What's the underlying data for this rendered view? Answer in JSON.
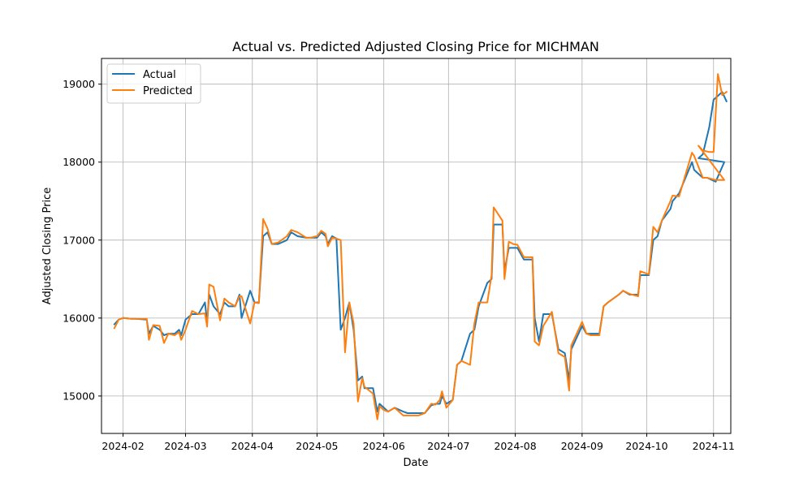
{
  "chart_data": {
    "type": "line",
    "title": "Actual vs. Predicted Adjusted Closing Price for MICHMAN",
    "xlabel": "Date",
    "ylabel": "Adjusted Closing Price",
    "x_tick_labels": [
      "2024-02",
      "2024-03",
      "2024-04",
      "2024-05",
      "2024-06",
      "2024-07",
      "2024-08",
      "2024-09",
      "2024-10",
      "2024-11"
    ],
    "y_tick_labels": [
      "15000",
      "16000",
      "17000",
      "18000",
      "19000"
    ],
    "x_ticks": [
      "2024-02-01",
      "2024-03-01",
      "2024-04-01",
      "2024-05-01",
      "2024-06-01",
      "2024-07-01",
      "2024-08-01",
      "2024-09-01",
      "2024-10-01",
      "2024-11-01"
    ],
    "y_ticks": [
      15000,
      16000,
      17000,
      18000,
      19000
    ],
    "xlim": [
      "2024-01-22",
      "2024-11-09"
    ],
    "ylim": [
      14520,
      19330
    ],
    "grid": true,
    "legend_position": "upper-left",
    "series": [
      {
        "name": "Actual",
        "color": "#1f77b4",
        "points": [
          [
            "2024-01-28",
            15920
          ],
          [
            "2024-01-30",
            15980
          ],
          [
            "2024-02-01",
            16000
          ],
          [
            "2024-02-05",
            15990
          ],
          [
            "2024-02-07",
            15990
          ],
          [
            "2024-02-12",
            15980
          ],
          [
            "2024-02-13",
            15800
          ],
          [
            "2024-02-15",
            15900
          ],
          [
            "2024-02-18",
            15850
          ],
          [
            "2024-02-20",
            15780
          ],
          [
            "2024-02-22",
            15800
          ],
          [
            "2024-02-25",
            15800
          ],
          [
            "2024-02-27",
            15850
          ],
          [
            "2024-02-28",
            15780
          ],
          [
            "2024-03-01",
            15980
          ],
          [
            "2024-03-04",
            16050
          ],
          [
            "2024-03-07",
            16050
          ],
          [
            "2024-03-10",
            16200
          ],
          [
            "2024-03-11",
            15950
          ],
          [
            "2024-03-12",
            16300
          ],
          [
            "2024-03-14",
            16150
          ],
          [
            "2024-03-17",
            16050
          ],
          [
            "2024-03-19",
            16200
          ],
          [
            "2024-03-21",
            16150
          ],
          [
            "2024-03-24",
            16150
          ],
          [
            "2024-03-26",
            16300
          ],
          [
            "2024-03-27",
            16000
          ],
          [
            "2024-03-31",
            16350
          ],
          [
            "2024-04-02",
            16200
          ],
          [
            "2024-04-04",
            16200
          ],
          [
            "2024-04-06",
            17050
          ],
          [
            "2024-04-08",
            17100
          ],
          [
            "2024-04-10",
            16950
          ],
          [
            "2024-04-13",
            16950
          ],
          [
            "2024-04-17",
            17000
          ],
          [
            "2024-04-19",
            17100
          ],
          [
            "2024-04-22",
            17050
          ],
          [
            "2024-04-26",
            17030
          ],
          [
            "2024-04-28",
            17030
          ],
          [
            "2024-05-01",
            17030
          ],
          [
            "2024-05-03",
            17100
          ],
          [
            "2024-05-05",
            17050
          ],
          [
            "2024-05-06",
            16950
          ],
          [
            "2024-05-08",
            17050
          ],
          [
            "2024-05-10",
            17020
          ],
          [
            "2024-05-12",
            15850
          ],
          [
            "2024-05-14",
            16000
          ],
          [
            "2024-05-16",
            16200
          ],
          [
            "2024-05-18",
            15850
          ],
          [
            "2024-05-20",
            15200
          ],
          [
            "2024-05-22",
            15250
          ],
          [
            "2024-05-23",
            15100
          ],
          [
            "2024-05-27",
            15100
          ],
          [
            "2024-05-29",
            14800
          ],
          [
            "2024-05-30",
            14900
          ],
          [
            "2024-06-01",
            14850
          ],
          [
            "2024-06-03",
            14800
          ],
          [
            "2024-06-06",
            14850
          ],
          [
            "2024-06-10",
            14800
          ],
          [
            "2024-06-12",
            14780
          ],
          [
            "2024-06-17",
            14780
          ],
          [
            "2024-06-20",
            14780
          ],
          [
            "2024-06-23",
            14880
          ],
          [
            "2024-06-25",
            14900
          ],
          [
            "2024-06-27",
            14900
          ],
          [
            "2024-06-28",
            15000
          ],
          [
            "2024-06-30",
            14900
          ],
          [
            "2024-07-03",
            14950
          ],
          [
            "2024-07-05",
            15400
          ],
          [
            "2024-07-07",
            15450
          ],
          [
            "2024-07-11",
            15800
          ],
          [
            "2024-07-13",
            15850
          ],
          [
            "2024-07-15",
            16150
          ],
          [
            "2024-07-19",
            16450
          ],
          [
            "2024-07-21",
            16500
          ],
          [
            "2024-07-22",
            17200
          ],
          [
            "2024-07-26",
            17200
          ],
          [
            "2024-07-27",
            16600
          ],
          [
            "2024-07-29",
            16900
          ],
          [
            "2024-07-31",
            16900
          ],
          [
            "2024-08-02",
            16900
          ],
          [
            "2024-08-05",
            16750
          ],
          [
            "2024-08-09",
            16750
          ],
          [
            "2024-08-10",
            16000
          ],
          [
            "2024-08-12",
            15700
          ],
          [
            "2024-08-14",
            16050
          ],
          [
            "2024-08-18",
            16050
          ],
          [
            "2024-08-21",
            15600
          ],
          [
            "2024-08-24",
            15550
          ],
          [
            "2024-08-26",
            15200
          ],
          [
            "2024-08-27",
            15600
          ],
          [
            "2024-09-01",
            15900
          ],
          [
            "2024-09-03",
            15800
          ],
          [
            "2024-09-05",
            15800
          ],
          [
            "2024-09-09",
            15800
          ],
          [
            "2024-09-11",
            16150
          ],
          [
            "2024-09-13",
            16200
          ],
          [
            "2024-09-18",
            16300
          ],
          [
            "2024-09-20",
            16350
          ],
          [
            "2024-09-23",
            16300
          ],
          [
            "2024-09-27",
            16300
          ],
          [
            "2024-09-28",
            16550
          ],
          [
            "2024-10-02",
            16550
          ],
          [
            "2024-10-04",
            17000
          ],
          [
            "2024-10-06",
            17050
          ],
          [
            "2024-10-08",
            17250
          ],
          [
            "2024-10-12",
            17400
          ],
          [
            "2024-10-13",
            17500
          ],
          [
            "2024-10-16",
            17600
          ],
          [
            "2024-10-22",
            18000
          ],
          [
            "2024-10-23",
            17900
          ],
          [
            "2024-10-27",
            17800
          ],
          [
            "2024-10-29",
            17800
          ],
          [
            "2024-11-02",
            17750
          ],
          [
            "2024-11-06",
            18000
          ],
          [
            "2024-10-25",
            18050
          ],
          [
            "2024-10-27",
            18100
          ],
          [
            "2024-10-30",
            18450
          ],
          [
            "2024-11-01",
            18800
          ],
          [
            "2024-11-03",
            18850
          ],
          [
            "2024-11-05",
            18900
          ],
          [
            "2024-11-07",
            18780
          ]
        ]
      },
      {
        "name": "Predicted",
        "color": "#ff7f0e",
        "points": [
          [
            "2024-01-28",
            15870
          ],
          [
            "2024-01-30",
            15980
          ],
          [
            "2024-02-01",
            16000
          ],
          [
            "2024-02-05",
            15990
          ],
          [
            "2024-02-07",
            15990
          ],
          [
            "2024-02-12",
            15990
          ],
          [
            "2024-02-13",
            15720
          ],
          [
            "2024-02-15",
            15910
          ],
          [
            "2024-02-18",
            15900
          ],
          [
            "2024-02-20",
            15680
          ],
          [
            "2024-02-22",
            15800
          ],
          [
            "2024-02-25",
            15780
          ],
          [
            "2024-02-27",
            15820
          ],
          [
            "2024-02-28",
            15720
          ],
          [
            "2024-03-01",
            15850
          ],
          [
            "2024-03-04",
            16090
          ],
          [
            "2024-03-07",
            16050
          ],
          [
            "2024-03-10",
            16060
          ],
          [
            "2024-03-11",
            15890
          ],
          [
            "2024-03-12",
            16430
          ],
          [
            "2024-03-14",
            16400
          ],
          [
            "2024-03-17",
            15970
          ],
          [
            "2024-03-19",
            16250
          ],
          [
            "2024-03-21",
            16200
          ],
          [
            "2024-03-24",
            16150
          ],
          [
            "2024-03-26",
            16280
          ],
          [
            "2024-03-27",
            16280
          ],
          [
            "2024-03-31",
            15930
          ],
          [
            "2024-04-02",
            16200
          ],
          [
            "2024-04-04",
            16190
          ],
          [
            "2024-04-06",
            17270
          ],
          [
            "2024-04-08",
            17150
          ],
          [
            "2024-04-10",
            16950
          ],
          [
            "2024-04-13",
            16970
          ],
          [
            "2024-04-17",
            17050
          ],
          [
            "2024-04-19",
            17130
          ],
          [
            "2024-04-22",
            17100
          ],
          [
            "2024-04-26",
            17030
          ],
          [
            "2024-04-28",
            17030
          ],
          [
            "2024-05-01",
            17050
          ],
          [
            "2024-05-03",
            17120
          ],
          [
            "2024-05-05",
            17080
          ],
          [
            "2024-05-06",
            16920
          ],
          [
            "2024-05-08",
            17030
          ],
          [
            "2024-05-10",
            17020
          ],
          [
            "2024-05-12",
            17000
          ],
          [
            "2024-05-14",
            15560
          ],
          [
            "2024-05-16",
            16200
          ],
          [
            "2024-05-18",
            15930
          ],
          [
            "2024-05-20",
            14930
          ],
          [
            "2024-05-22",
            15230
          ],
          [
            "2024-05-23",
            15120
          ],
          [
            "2024-05-27",
            15030
          ],
          [
            "2024-05-29",
            14700
          ],
          [
            "2024-05-30",
            14870
          ],
          [
            "2024-06-01",
            14820
          ],
          [
            "2024-06-03",
            14800
          ],
          [
            "2024-06-06",
            14850
          ],
          [
            "2024-06-10",
            14750
          ],
          [
            "2024-06-12",
            14750
          ],
          [
            "2024-06-17",
            14750
          ],
          [
            "2024-06-20",
            14780
          ],
          [
            "2024-06-23",
            14900
          ],
          [
            "2024-06-25",
            14890
          ],
          [
            "2024-06-27",
            14950
          ],
          [
            "2024-06-28",
            15060
          ],
          [
            "2024-06-30",
            14850
          ],
          [
            "2024-07-03",
            14950
          ],
          [
            "2024-07-05",
            15400
          ],
          [
            "2024-07-07",
            15450
          ],
          [
            "2024-07-11",
            15400
          ],
          [
            "2024-07-13",
            15930
          ],
          [
            "2024-07-15",
            16200
          ],
          [
            "2024-07-19",
            16200
          ],
          [
            "2024-07-21",
            16550
          ],
          [
            "2024-07-22",
            17420
          ],
          [
            "2024-07-26",
            17250
          ],
          [
            "2024-07-27",
            16500
          ],
          [
            "2024-07-29",
            16980
          ],
          [
            "2024-07-31",
            16950
          ],
          [
            "2024-08-02",
            16940
          ],
          [
            "2024-08-05",
            16780
          ],
          [
            "2024-08-09",
            16780
          ],
          [
            "2024-08-10",
            15700
          ],
          [
            "2024-08-12",
            15650
          ],
          [
            "2024-08-14",
            15900
          ],
          [
            "2024-08-18",
            16080
          ],
          [
            "2024-08-21",
            15550
          ],
          [
            "2024-08-24",
            15500
          ],
          [
            "2024-08-26",
            15070
          ],
          [
            "2024-08-27",
            15650
          ],
          [
            "2024-09-01",
            15950
          ],
          [
            "2024-09-03",
            15800
          ],
          [
            "2024-09-05",
            15780
          ],
          [
            "2024-09-09",
            15780
          ],
          [
            "2024-09-11",
            16150
          ],
          [
            "2024-09-13",
            16200
          ],
          [
            "2024-09-18",
            16300
          ],
          [
            "2024-09-20",
            16350
          ],
          [
            "2024-09-23",
            16310
          ],
          [
            "2024-09-27",
            16280
          ],
          [
            "2024-09-28",
            16600
          ],
          [
            "2024-10-02",
            16560
          ],
          [
            "2024-10-04",
            17170
          ],
          [
            "2024-10-06",
            17100
          ],
          [
            "2024-10-08",
            17250
          ],
          [
            "2024-10-12",
            17500
          ],
          [
            "2024-10-13",
            17570
          ],
          [
            "2024-10-16",
            17560
          ],
          [
            "2024-10-22",
            18120
          ],
          [
            "2024-10-23",
            18080
          ],
          [
            "2024-10-27",
            17800
          ],
          [
            "2024-10-29",
            17800
          ],
          [
            "2024-11-02",
            17770
          ],
          [
            "2024-11-06",
            17770
          ],
          [
            "2024-10-25",
            18210
          ],
          [
            "2024-10-27",
            18150
          ],
          [
            "2024-10-30",
            18130
          ],
          [
            "2024-11-01",
            18130
          ],
          [
            "2024-11-03",
            19130
          ],
          [
            "2024-11-05",
            18860
          ],
          [
            "2024-11-07",
            18900
          ]
        ]
      }
    ]
  }
}
